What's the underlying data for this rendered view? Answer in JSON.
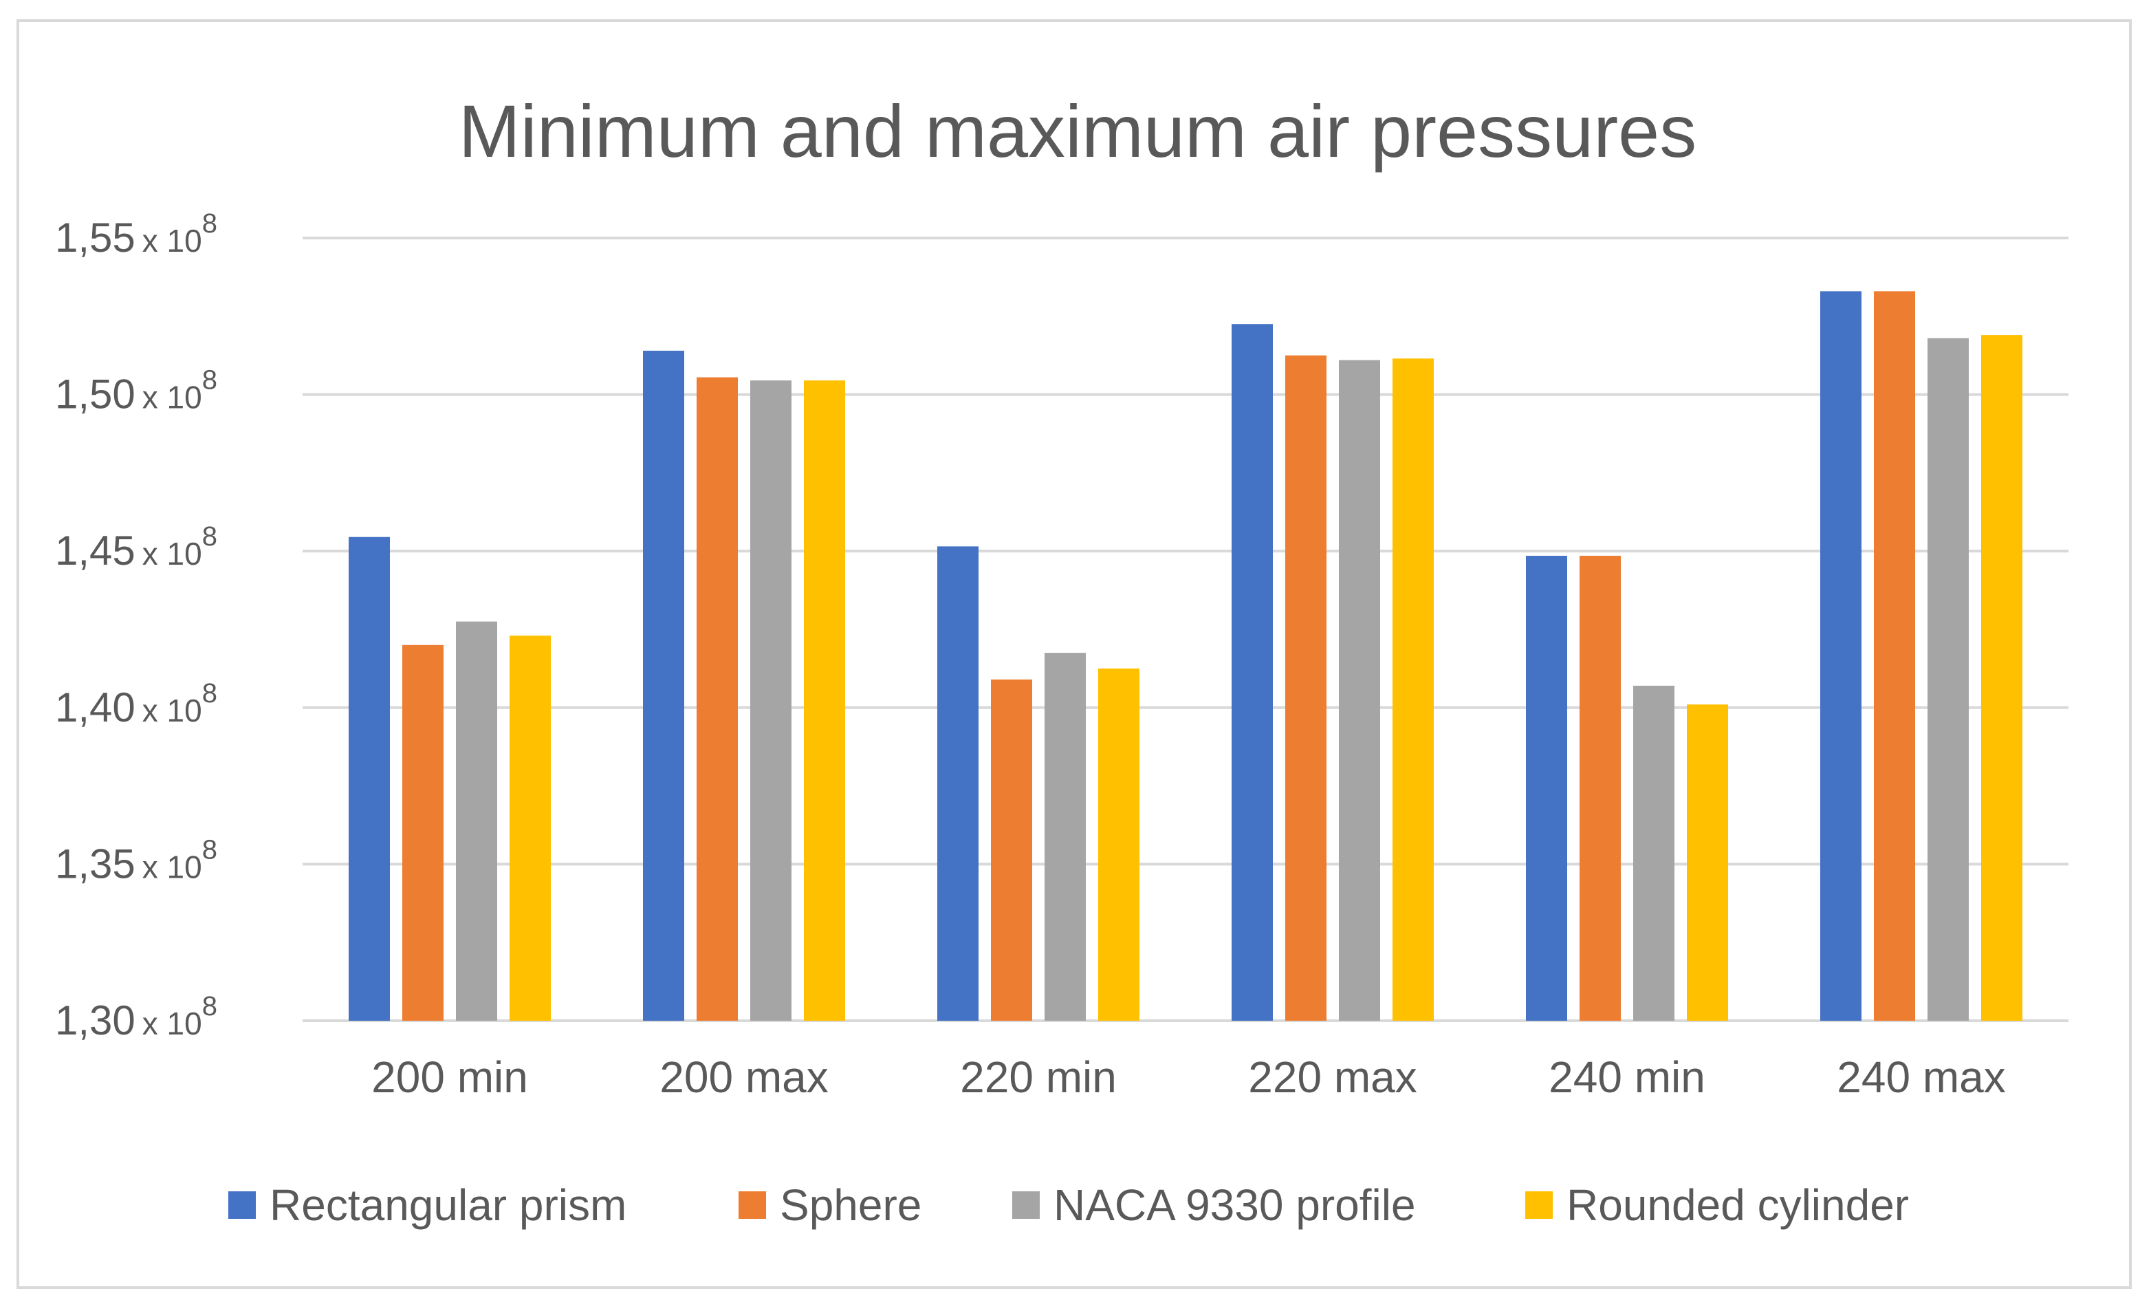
{
  "chart_data": {
    "type": "bar",
    "title": "Minimum and maximum air pressures",
    "xlabel": "",
    "ylabel": "",
    "categories": [
      "200 min",
      "200 max",
      "220 min",
      "220 max",
      "240 min",
      "240 max"
    ],
    "series": [
      {
        "name": "Rectangular prism",
        "color": "#4472c4",
        "values": [
          145450000.0,
          151400000.0,
          145150000.0,
          152250000.0,
          144850000.0,
          153300000.0
        ]
      },
      {
        "name": "Sphere",
        "color": "#ed7d31",
        "values": [
          142000000.0,
          150550000.0,
          140900000.0,
          151250000.0,
          144850000.0,
          153300000.0
        ]
      },
      {
        "name": "NACA 9330 profile",
        "color": "#a5a5a5",
        "values": [
          142750000.0,
          150450000.0,
          141750000.0,
          151100000.0,
          140700000.0,
          151800000.0
        ]
      },
      {
        "name": "Rounded cylinder",
        "color": "#ffc000",
        "values": [
          142300000.0,
          150450000.0,
          141250000.0,
          151150000.0,
          140100000.0,
          151900000.0
        ]
      }
    ],
    "ylim": [
      130000000,
      155000000
    ],
    "yticks": [
      {
        "value": 130000000,
        "mantissa": "1,30",
        "times": "x 10",
        "exponent": "8"
      },
      {
        "value": 135000000,
        "mantissa": "1,35",
        "times": "x 10",
        "exponent": "8"
      },
      {
        "value": 140000000,
        "mantissa": "1,40",
        "times": "x 10",
        "exponent": "8"
      },
      {
        "value": 145000000,
        "mantissa": "1,45",
        "times": "x 10",
        "exponent": "8"
      },
      {
        "value": 150000000,
        "mantissa": "1,50",
        "times": "x 10",
        "exponent": "8"
      },
      {
        "value": 155000000,
        "mantissa": "1,55",
        "times": "x 10",
        "exponent": "8"
      }
    ],
    "grid": true,
    "legend_position": "bottom"
  }
}
